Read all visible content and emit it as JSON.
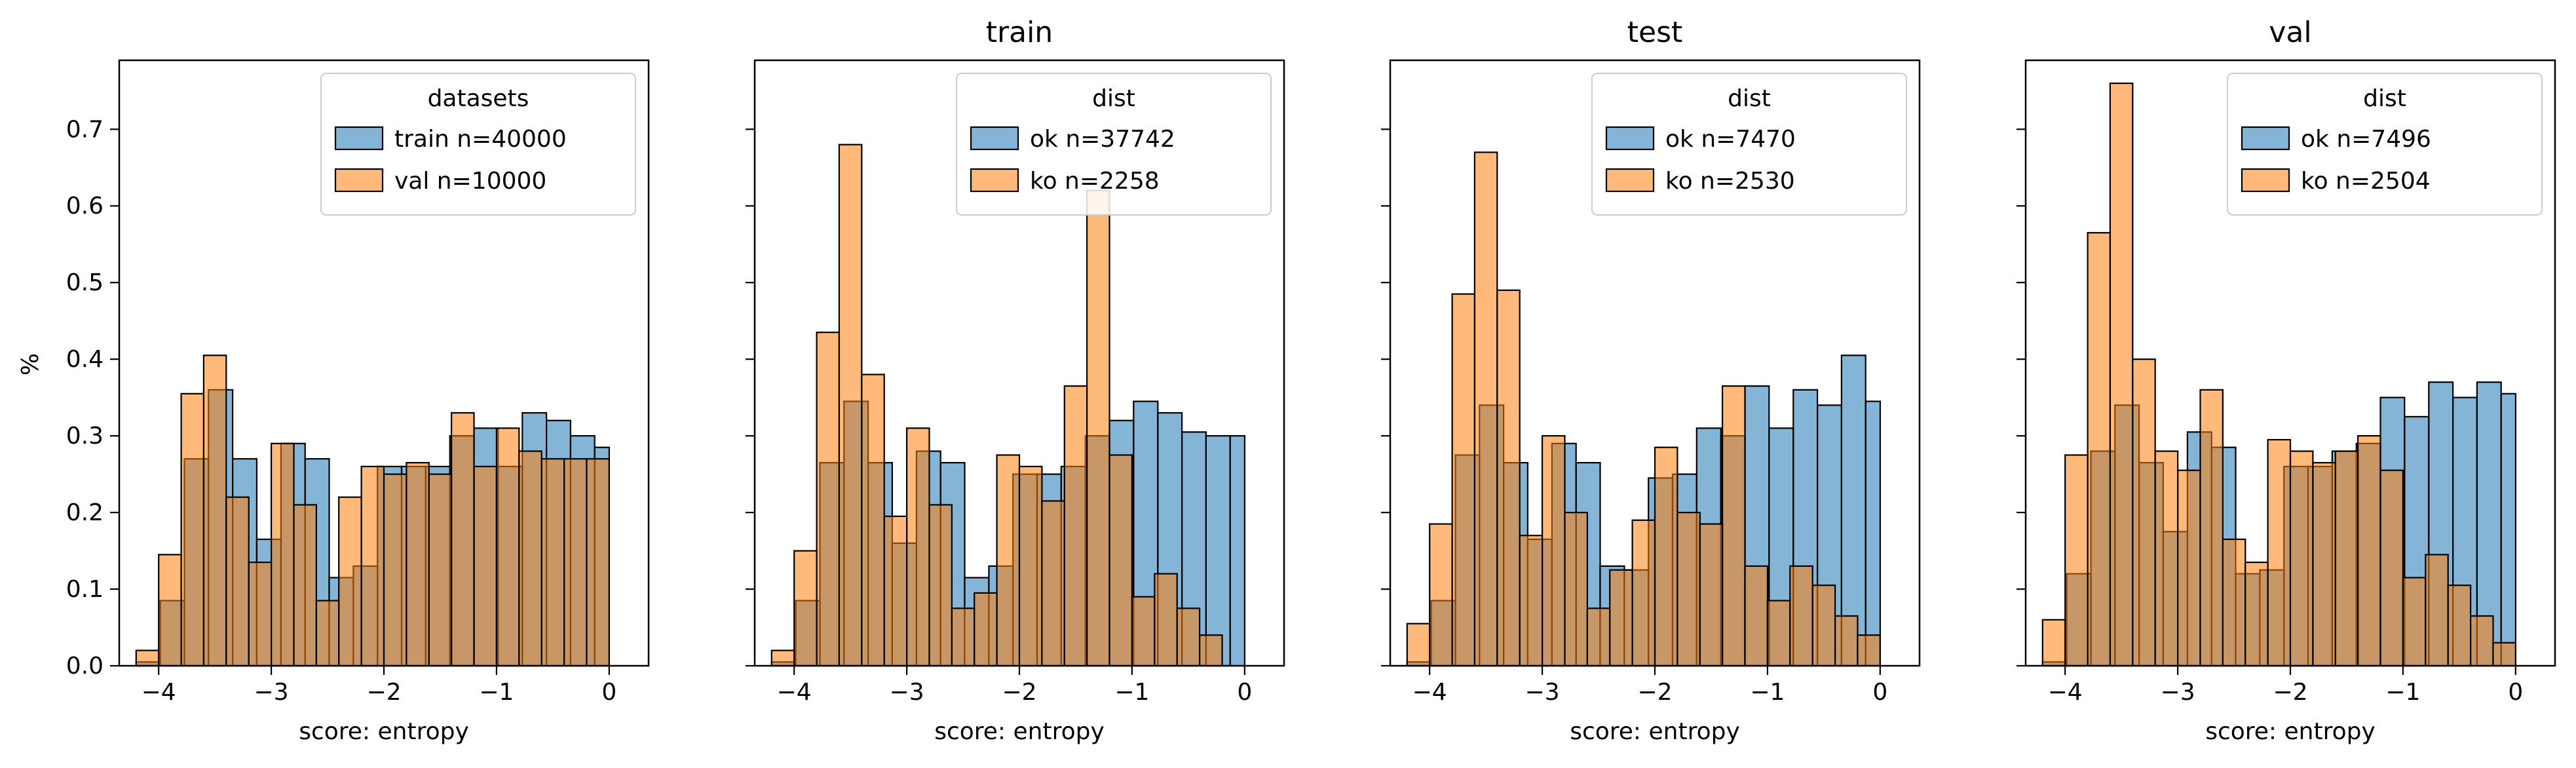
{
  "colors": {
    "series1": "#1f77b4",
    "series2": "#ff7f0e"
  },
  "chart_data": [
    {
      "type": "bar",
      "title": "",
      "xlabel": "score: entropy",
      "ylabel": "%",
      "xlim": [
        -4.35,
        0.35
      ],
      "ylim": [
        0,
        0.79
      ],
      "xticks": [
        -4,
        -3,
        -2,
        -1,
        0
      ],
      "xtick_labels": [
        "−4",
        "−3",
        "−2",
        "−1",
        "0"
      ],
      "yticks": [
        0.0,
        0.1,
        0.2,
        0.3,
        0.4,
        0.5,
        0.6,
        0.7
      ],
      "ytick_labels": [
        "0.0",
        "0.1",
        "0.2",
        "0.3",
        "0.4",
        "0.5",
        "0.6",
        "0.7"
      ],
      "legend": {
        "title": "datasets",
        "placement": "upper right"
      },
      "series": [
        {
          "name": "train n=40000",
          "bin_edges": [
            -4.2,
            -3.986,
            -3.771,
            -3.557,
            -3.343,
            -3.129,
            -2.914,
            -2.7,
            -2.486,
            -2.271,
            -2.057,
            -1.843,
            -1.629,
            -1.414,
            -1.2,
            -0.986,
            -0.771,
            -0.557,
            -0.343,
            -0.129,
            0.0
          ],
          "values": [
            0.005,
            0.085,
            0.27,
            0.36,
            0.27,
            0.165,
            0.29,
            0.27,
            0.115,
            0.13,
            0.26,
            0.26,
            0.26,
            0.3,
            0.31,
            0.26,
            0.33,
            0.32,
            0.3,
            0.285
          ]
        },
        {
          "name": "val n=10000",
          "bin_edges": [
            -4.2,
            -4.0,
            -3.8,
            -3.6,
            -3.4,
            -3.2,
            -3.0,
            -2.8,
            -2.6,
            -2.4,
            -2.2,
            -2.0,
            -1.8,
            -1.6,
            -1.4,
            -1.2,
            -1.0,
            -0.8,
            -0.6,
            -0.4,
            -0.2,
            0.0
          ],
          "values": [
            0.02,
            0.145,
            0.355,
            0.405,
            0.22,
            0.135,
            0.29,
            0.21,
            0.085,
            0.22,
            0.26,
            0.25,
            0.265,
            0.25,
            0.33,
            0.26,
            0.31,
            0.28,
            0.27,
            0.27,
            0.27
          ]
        }
      ]
    },
    {
      "type": "bar",
      "title": "train",
      "xlabel": "score: entropy",
      "ylabel": "",
      "xlim": [
        -4.35,
        0.35
      ],
      "ylim": [
        0,
        0.79
      ],
      "xticks": [
        -4,
        -3,
        -2,
        -1,
        0
      ],
      "xtick_labels": [
        "−4",
        "−3",
        "−2",
        "−1",
        "0"
      ],
      "yticks": [
        0.0,
        0.1,
        0.2,
        0.3,
        0.4,
        0.5,
        0.6,
        0.7
      ],
      "ytick_labels": [
        "",
        "",
        "",
        "",
        "",
        "",
        "",
        ""
      ],
      "legend": {
        "title": "dist",
        "placement": "upper right"
      },
      "series": [
        {
          "name": "ok n=37742",
          "bin_edges": [
            -4.2,
            -3.986,
            -3.771,
            -3.557,
            -3.343,
            -3.129,
            -2.914,
            -2.7,
            -2.486,
            -2.271,
            -2.057,
            -1.843,
            -1.629,
            -1.414,
            -1.2,
            -0.986,
            -0.771,
            -0.557,
            -0.343,
            -0.129,
            0.0
          ],
          "values": [
            0.005,
            0.085,
            0.265,
            0.345,
            0.265,
            0.16,
            0.28,
            0.265,
            0.115,
            0.13,
            0.25,
            0.25,
            0.26,
            0.3,
            0.32,
            0.345,
            0.33,
            0.305,
            0.3,
            0.3
          ]
        },
        {
          "name": "ko n=2258",
          "bin_edges": [
            -4.2,
            -4.0,
            -3.8,
            -3.6,
            -3.4,
            -3.2,
            -3.0,
            -2.8,
            -2.6,
            -2.4,
            -2.2,
            -2.0,
            -1.8,
            -1.6,
            -1.4,
            -1.2,
            -1.0,
            -0.8,
            -0.6,
            -0.4,
            -0.2,
            0.0
          ],
          "values": [
            0.02,
            0.15,
            0.435,
            0.68,
            0.38,
            0.195,
            0.31,
            0.21,
            0.075,
            0.095,
            0.275,
            0.26,
            0.215,
            0.365,
            0.62,
            0.275,
            0.09,
            0.12,
            0.075,
            0.04,
            0.0
          ]
        }
      ]
    },
    {
      "type": "bar",
      "title": "test",
      "xlabel": "score: entropy",
      "ylabel": "",
      "xlim": [
        -4.35,
        0.35
      ],
      "ylim": [
        0,
        0.79
      ],
      "xticks": [
        -4,
        -3,
        -2,
        -1,
        0
      ],
      "xtick_labels": [
        "−4",
        "−3",
        "−2",
        "−1",
        "0"
      ],
      "yticks": [
        0.0,
        0.1,
        0.2,
        0.3,
        0.4,
        0.5,
        0.6,
        0.7
      ],
      "ytick_labels": [
        "",
        "",
        "",
        "",
        "",
        "",
        "",
        ""
      ],
      "legend": {
        "title": "dist",
        "placement": "upper right"
      },
      "series": [
        {
          "name": "ok n=7470",
          "bin_edges": [
            -4.2,
            -3.986,
            -3.771,
            -3.557,
            -3.343,
            -3.129,
            -2.914,
            -2.7,
            -2.486,
            -2.271,
            -2.057,
            -1.843,
            -1.629,
            -1.414,
            -1.2,
            -0.986,
            -0.771,
            -0.557,
            -0.343,
            -0.129,
            0.0
          ],
          "values": [
            0.005,
            0.085,
            0.275,
            0.34,
            0.265,
            0.165,
            0.29,
            0.265,
            0.13,
            0.125,
            0.245,
            0.25,
            0.31,
            0.3,
            0.365,
            0.31,
            0.36,
            0.34,
            0.405,
            0.345
          ]
        },
        {
          "name": "ko n=2530",
          "bin_edges": [
            -4.2,
            -4.0,
            -3.8,
            -3.6,
            -3.4,
            -3.2,
            -3.0,
            -2.8,
            -2.6,
            -2.4,
            -2.2,
            -2.0,
            -1.8,
            -1.6,
            -1.4,
            -1.2,
            -1.0,
            -0.8,
            -0.6,
            -0.4,
            -0.2,
            0.0
          ],
          "values": [
            0.055,
            0.185,
            0.485,
            0.67,
            0.49,
            0.17,
            0.3,
            0.2,
            0.075,
            0.125,
            0.19,
            0.285,
            0.2,
            0.185,
            0.365,
            0.13,
            0.085,
            0.13,
            0.105,
            0.065,
            0.04,
            0.0
          ]
        }
      ]
    },
    {
      "type": "bar",
      "title": "val",
      "xlabel": "score: entropy",
      "ylabel": "",
      "xlim": [
        -4.35,
        0.35
      ],
      "ylim": [
        0,
        0.79
      ],
      "xticks": [
        -4,
        -3,
        -2,
        -1,
        0
      ],
      "xtick_labels": [
        "−4",
        "−3",
        "−2",
        "−1",
        "0"
      ],
      "yticks": [
        0.0,
        0.1,
        0.2,
        0.3,
        0.4,
        0.5,
        0.6,
        0.7
      ],
      "ytick_labels": [
        "",
        "",
        "",
        "",
        "",
        "",
        "",
        ""
      ],
      "legend": {
        "title": "dist",
        "placement": "upper right"
      },
      "series": [
        {
          "name": "ok n=7496",
          "bin_edges": [
            -4.2,
            -3.986,
            -3.771,
            -3.557,
            -3.343,
            -3.129,
            -2.914,
            -2.7,
            -2.486,
            -2.271,
            -2.057,
            -1.843,
            -1.629,
            -1.414,
            -1.2,
            -0.986,
            -0.771,
            -0.557,
            -0.343,
            -0.129,
            0.0
          ],
          "values": [
            0.005,
            0.12,
            0.28,
            0.34,
            0.265,
            0.175,
            0.305,
            0.285,
            0.12,
            0.125,
            0.26,
            0.26,
            0.28,
            0.29,
            0.35,
            0.325,
            0.37,
            0.35,
            0.37,
            0.355
          ]
        },
        {
          "name": "ko n=2504",
          "bin_edges": [
            -4.2,
            -4.0,
            -3.8,
            -3.6,
            -3.4,
            -3.2,
            -3.0,
            -2.8,
            -2.6,
            -2.4,
            -2.2,
            -2.0,
            -1.8,
            -1.6,
            -1.4,
            -1.2,
            -1.0,
            -0.8,
            -0.6,
            -0.4,
            -0.2,
            0.0
          ],
          "values": [
            0.06,
            0.275,
            0.565,
            0.76,
            0.4,
            0.28,
            0.255,
            0.36,
            0.165,
            0.135,
            0.295,
            0.28,
            0.265,
            0.28,
            0.3,
            0.255,
            0.115,
            0.145,
            0.105,
            0.065,
            0.03,
            0.0
          ]
        }
      ]
    }
  ]
}
